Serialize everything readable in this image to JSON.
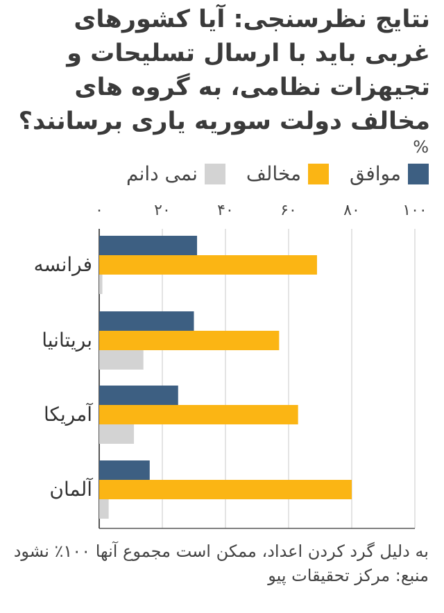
{
  "title": "نتایج نظرسنجی: آیا کشورهای غربی باید با ارسال تسلیحات و تجیهزات نظامی، به گروه های مخالف دولت سوریه یاری برسانند؟",
  "unit": "%",
  "colors": {
    "agree": "#3d5f82",
    "oppose": "#fbb514",
    "dontknow": "#d3d3d3",
    "grid": "#c8c8c8",
    "axis": "#555555"
  },
  "chart_data": {
    "type": "bar",
    "orientation": "horizontal",
    "xlim": [
      0,
      100
    ],
    "ticks": [
      0,
      20,
      40,
      60,
      80,
      100
    ],
    "tick_labels": [
      "۰",
      "۲۰",
      "۴۰",
      "۶۰",
      "۸۰",
      "۱۰۰"
    ],
    "categories": [
      "فرانسه",
      "بریتانیا",
      "آمریکا",
      "آلمان"
    ],
    "series": [
      {
        "key": "agree",
        "name": "موافق",
        "values": [
          31,
          30,
          25,
          16
        ]
      },
      {
        "key": "oppose",
        "name": "مخالف",
        "values": [
          69,
          57,
          63,
          80
        ]
      },
      {
        "key": "dontknow",
        "name": "نمی دانم",
        "values": [
          1,
          14,
          11,
          3
        ]
      }
    ],
    "legend_position": "top",
    "grid": true
  },
  "footnote": {
    "rounding": "به دلیل گرد کردن اعداد، ممکن است مجموع آنها ۱۰۰٪ نشود",
    "source": "منبع: مرکز تحقیقات پیو"
  }
}
